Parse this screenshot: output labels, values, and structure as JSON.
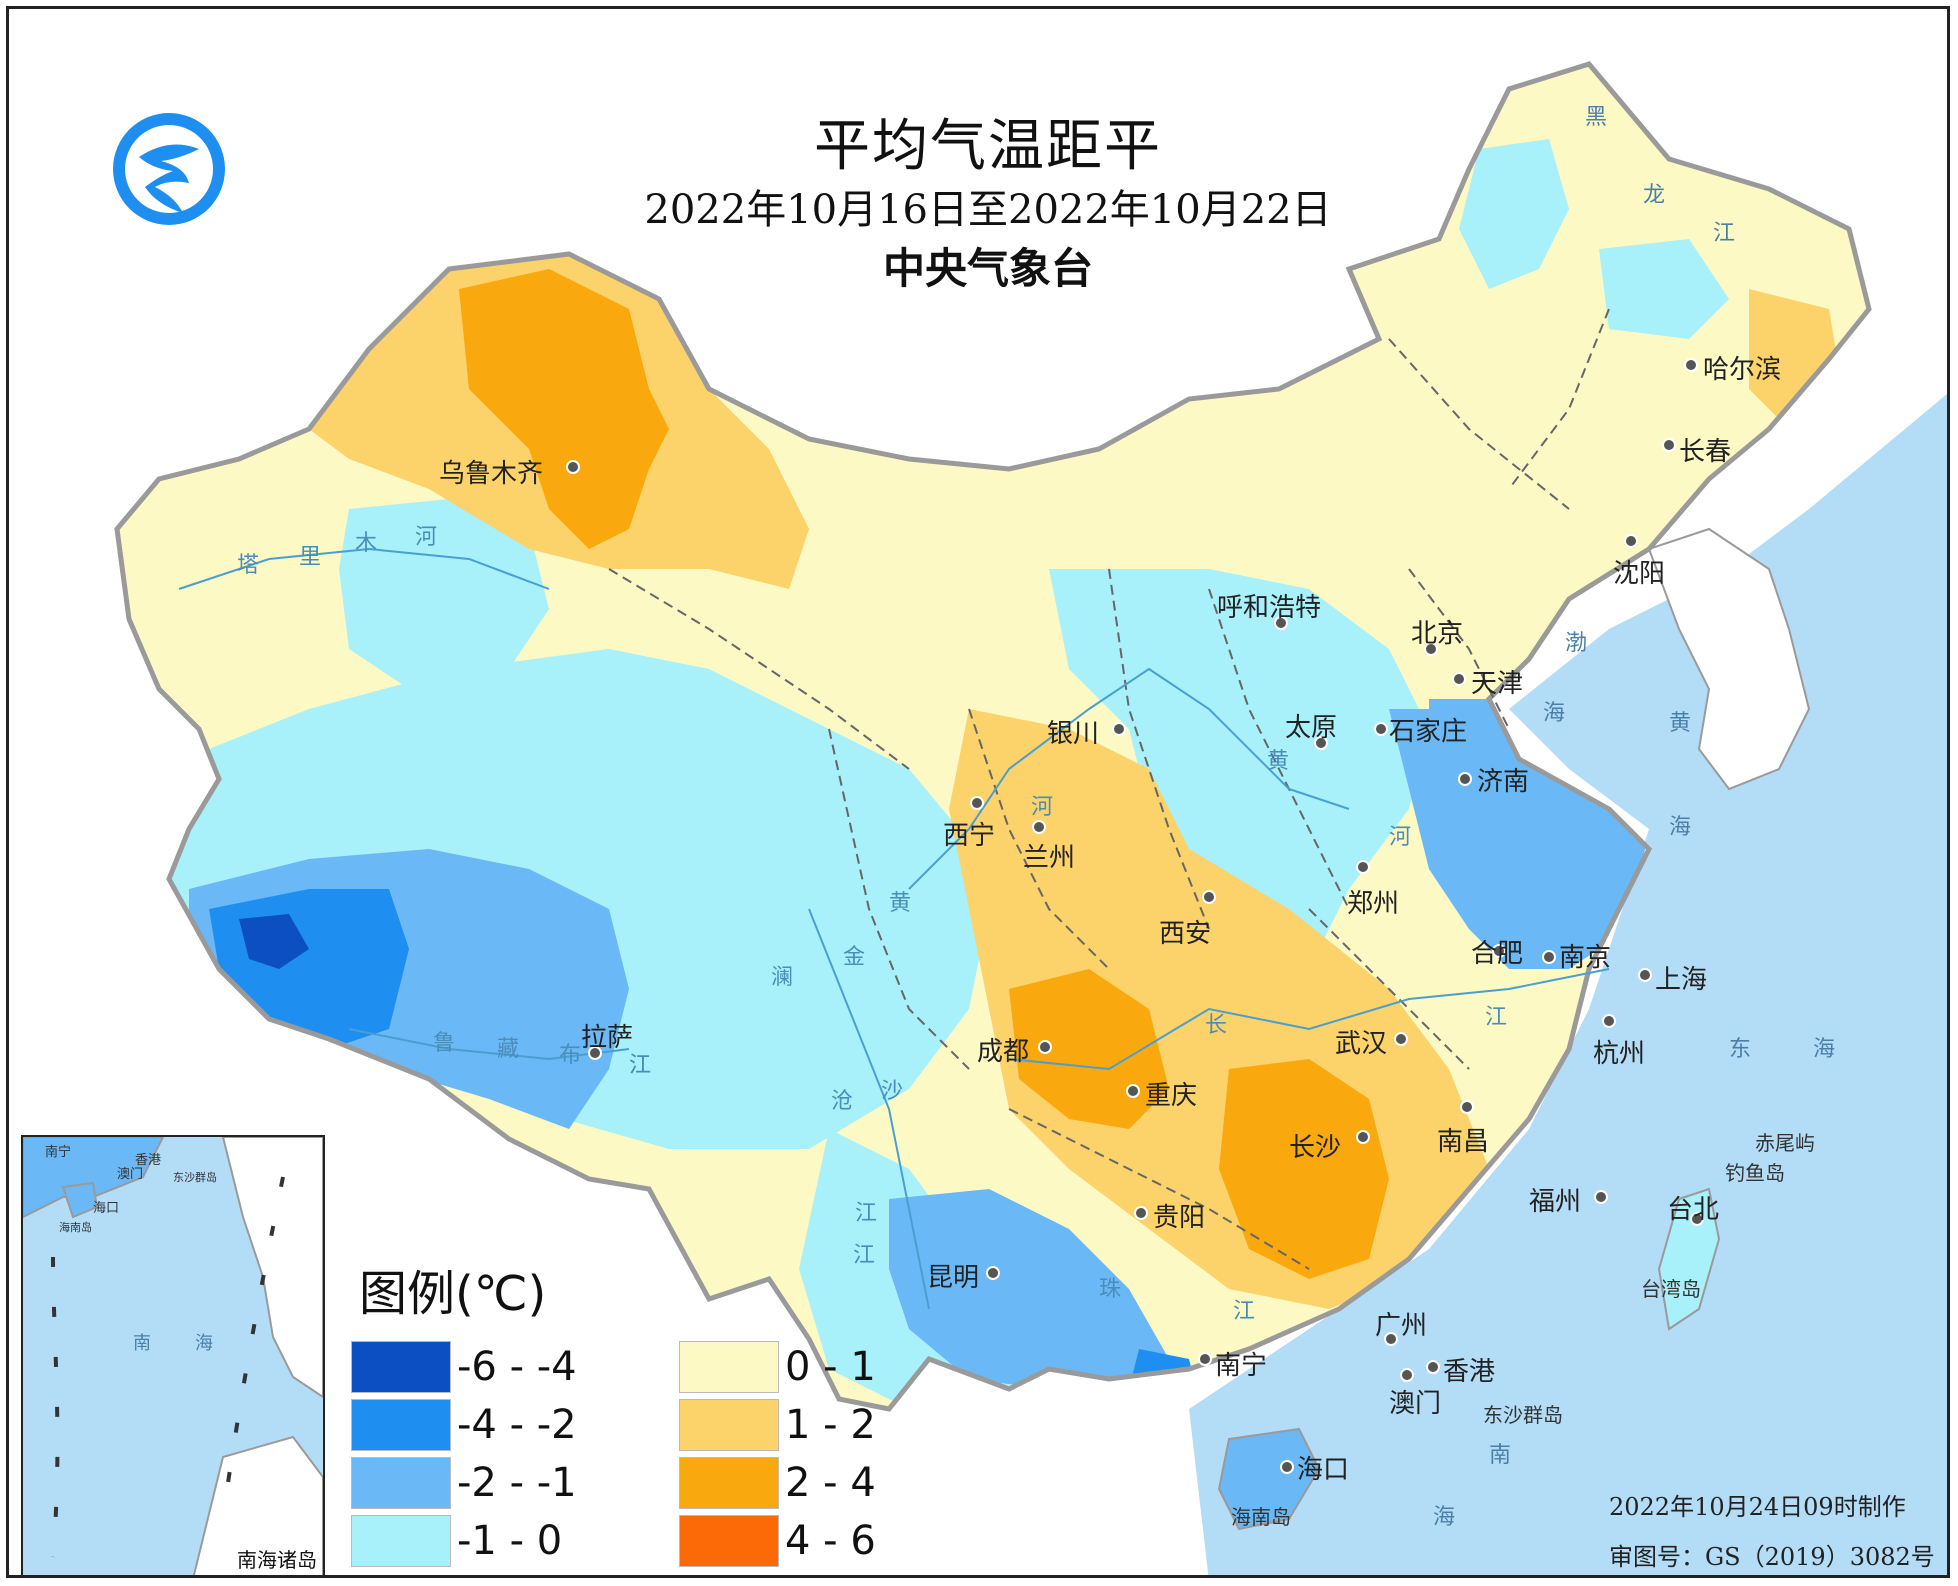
{
  "header": {
    "title": "平均气温距平",
    "subtitle": "2022年10月16日至2022年10月22日",
    "organization": "中央气象台"
  },
  "legend": {
    "title": "图例(℃)",
    "items": [
      {
        "label": "-6 - -4",
        "color": "#0b4fc2"
      },
      {
        "label": "-4 - -2",
        "color": "#1e8ff0"
      },
      {
        "label": "-2 - -1",
        "color": "#6ab8f5"
      },
      {
        "label": "-1 - 0",
        "color": "#a8f0fa"
      },
      {
        "label": "0 - 1",
        "color": "#fdf9c4"
      },
      {
        "label": "1 - 2",
        "color": "#fcd26a"
      },
      {
        "label": "2 - 4",
        "color": "#f9a80e"
      },
      {
        "label": "4 - 6",
        "color": "#fb6a06"
      }
    ]
  },
  "cities": [
    "乌鲁木齐",
    "哈尔滨",
    "长春",
    "沈阳",
    "呼和浩特",
    "北京",
    "天津",
    "石家庄",
    "太原",
    "银川",
    "济南",
    "西宁",
    "兰州",
    "郑州",
    "西安",
    "合肥",
    "南京",
    "上海",
    "拉萨",
    "武汉",
    "成都",
    "杭州",
    "重庆",
    "长沙",
    "南昌",
    "福州",
    "台北",
    "贵阳",
    "昆明",
    "广州",
    "南宁",
    "香港",
    "澳门",
    "海口"
  ],
  "rivers": [
    "塔",
    "里",
    "木",
    "河",
    "黄",
    "河",
    "黄",
    "河",
    "长",
    "江",
    "江",
    "鲁",
    "藏",
    "布",
    "江",
    "澜",
    "沧",
    "江",
    "金",
    "沙",
    "江",
    "珠",
    "江"
  ],
  "seas": [
    "渤",
    "海",
    "黄",
    "海",
    "东",
    "海",
    "南",
    "海",
    "黑",
    "龙",
    "江"
  ],
  "islands": [
    "赤尾屿",
    "钓鱼岛",
    "台湾岛",
    "东沙群岛",
    "海南岛"
  ],
  "inset": {
    "label": "南海诸岛",
    "labels": [
      "南宁",
      "澳门",
      "香港",
      "东沙群岛",
      "海口",
      "海南岛",
      "南",
      "海"
    ]
  },
  "footer": {
    "made_time": "2022年10月24日09时制作",
    "review_no": "审图号：GS（2019）3082号"
  },
  "colors": {
    "sea": "#b3dcf7",
    "border": "#9a9a9a",
    "river": "#4a9fd0"
  },
  "icons": [
    "cma-logo-icon"
  ]
}
